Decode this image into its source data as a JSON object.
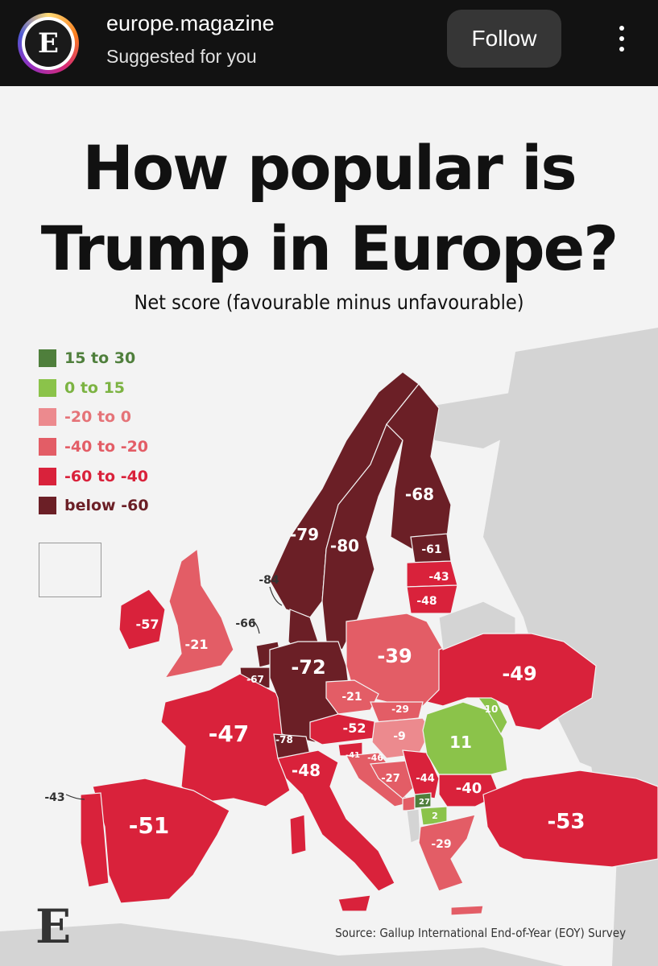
{
  "header": {
    "account_name": "europe.magazine",
    "subtitle": "Suggested for you",
    "follow_label": "Follow",
    "avatar_letter": "E"
  },
  "poster": {
    "title_line1": "How popular is",
    "title_line2": "Trump in Europe?",
    "subtitle": "Net score (favourable minus unfavourable)",
    "source": "Source: Gallup International End-of-Year (EOY) Survey",
    "logo_letter": "E"
  },
  "legend": [
    {
      "label": "15 to 30",
      "color": "#4f7f3c"
    },
    {
      "label": "0 to 15",
      "color": "#8bc34a"
    },
    {
      "label": "-20 to 0",
      "color": "#ec8a8e"
    },
    {
      "label": "-40 to -20",
      "color": "#e35d66"
    },
    {
      "label": "-60 to -40",
      "color": "#d9223b"
    },
    {
      "label": "below -60",
      "color": "#6b1f26"
    }
  ],
  "countries": {
    "norway": "-79",
    "sweden": "-80",
    "finland": "-68",
    "estonia": "-61",
    "latvia": "-43",
    "lithuania": "-48",
    "denmark": "-84",
    "uk": "-21",
    "ireland": "-57",
    "netherlands": "-66",
    "belgium": "-67",
    "germany": "-72",
    "poland": "-39",
    "ukraine": "-49",
    "czechia": "-21",
    "slovakia": "-29",
    "austria": "-52",
    "hungary": "-9",
    "romania": "11",
    "moldova": "10",
    "france": "-47",
    "switzerland": "-78",
    "slovenia": "-41",
    "croatia": "-46",
    "bosnia": "-27",
    "serbia": "-44",
    "bulgaria": "-40",
    "kosovo": "27",
    "north_macedonia": "2",
    "greece": "-29",
    "italy": "-48",
    "spain": "-51",
    "portugal": "-43",
    "turkey": "-53"
  }
}
